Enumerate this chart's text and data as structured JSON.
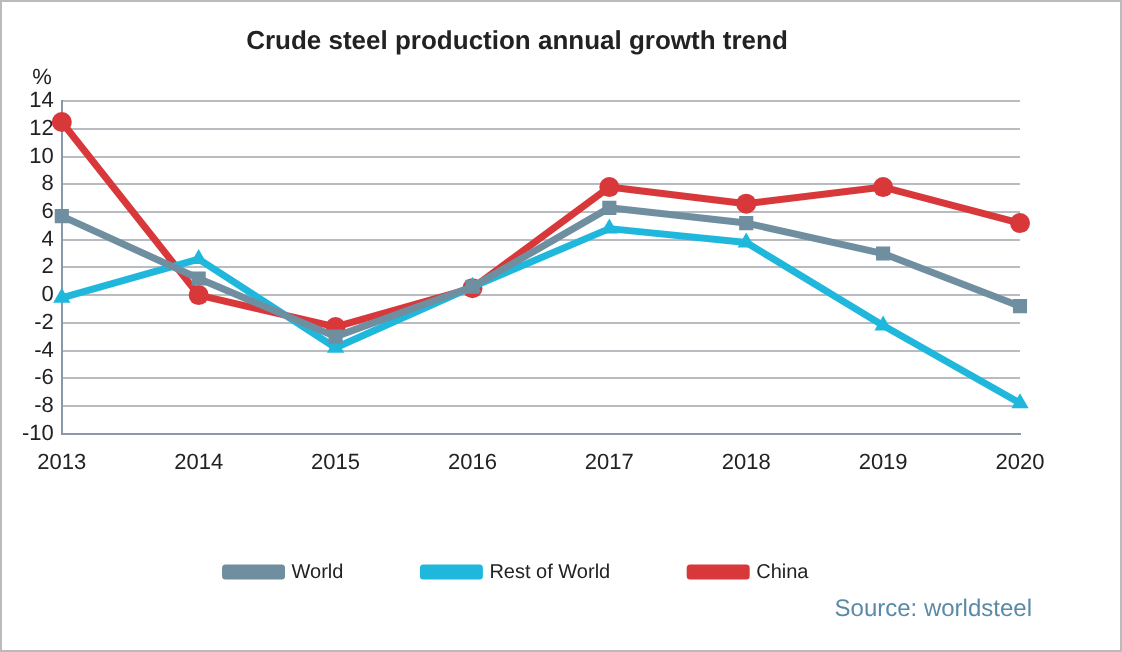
{
  "chart_data": {
    "type": "line",
    "title": "Crude steel production annual growth trend",
    "ylabel": "%",
    "categories": [
      "2013",
      "2014",
      "2015",
      "2016",
      "2017",
      "2018",
      "2019",
      "2020"
    ],
    "series": [
      {
        "name": "World",
        "color": "#6f8ea0",
        "marker": "square",
        "values": [
          5.7,
          1.2,
          -3.0,
          0.6,
          6.3,
          5.2,
          3.0,
          -0.8
        ]
      },
      {
        "name": "Rest of World",
        "color": "#1fb8dc",
        "marker": "triangle",
        "values": [
          -0.2,
          2.6,
          -3.8,
          0.6,
          4.8,
          3.8,
          -2.2,
          -7.8
        ]
      },
      {
        "name": "China",
        "color": "#d8383a",
        "marker": "circle",
        "values": [
          12.5,
          0.0,
          -2.3,
          0.5,
          7.8,
          6.6,
          7.8,
          5.2
        ]
      }
    ],
    "ylim": [
      -10,
      14
    ],
    "yticks": [
      -10,
      -8,
      -6,
      -4,
      -2,
      0,
      2,
      4,
      6,
      8,
      10,
      12,
      14
    ],
    "grid": "y",
    "legend": "bottom",
    "line_style": "solid",
    "annotations": [
      "Source: worldsteel"
    ]
  }
}
